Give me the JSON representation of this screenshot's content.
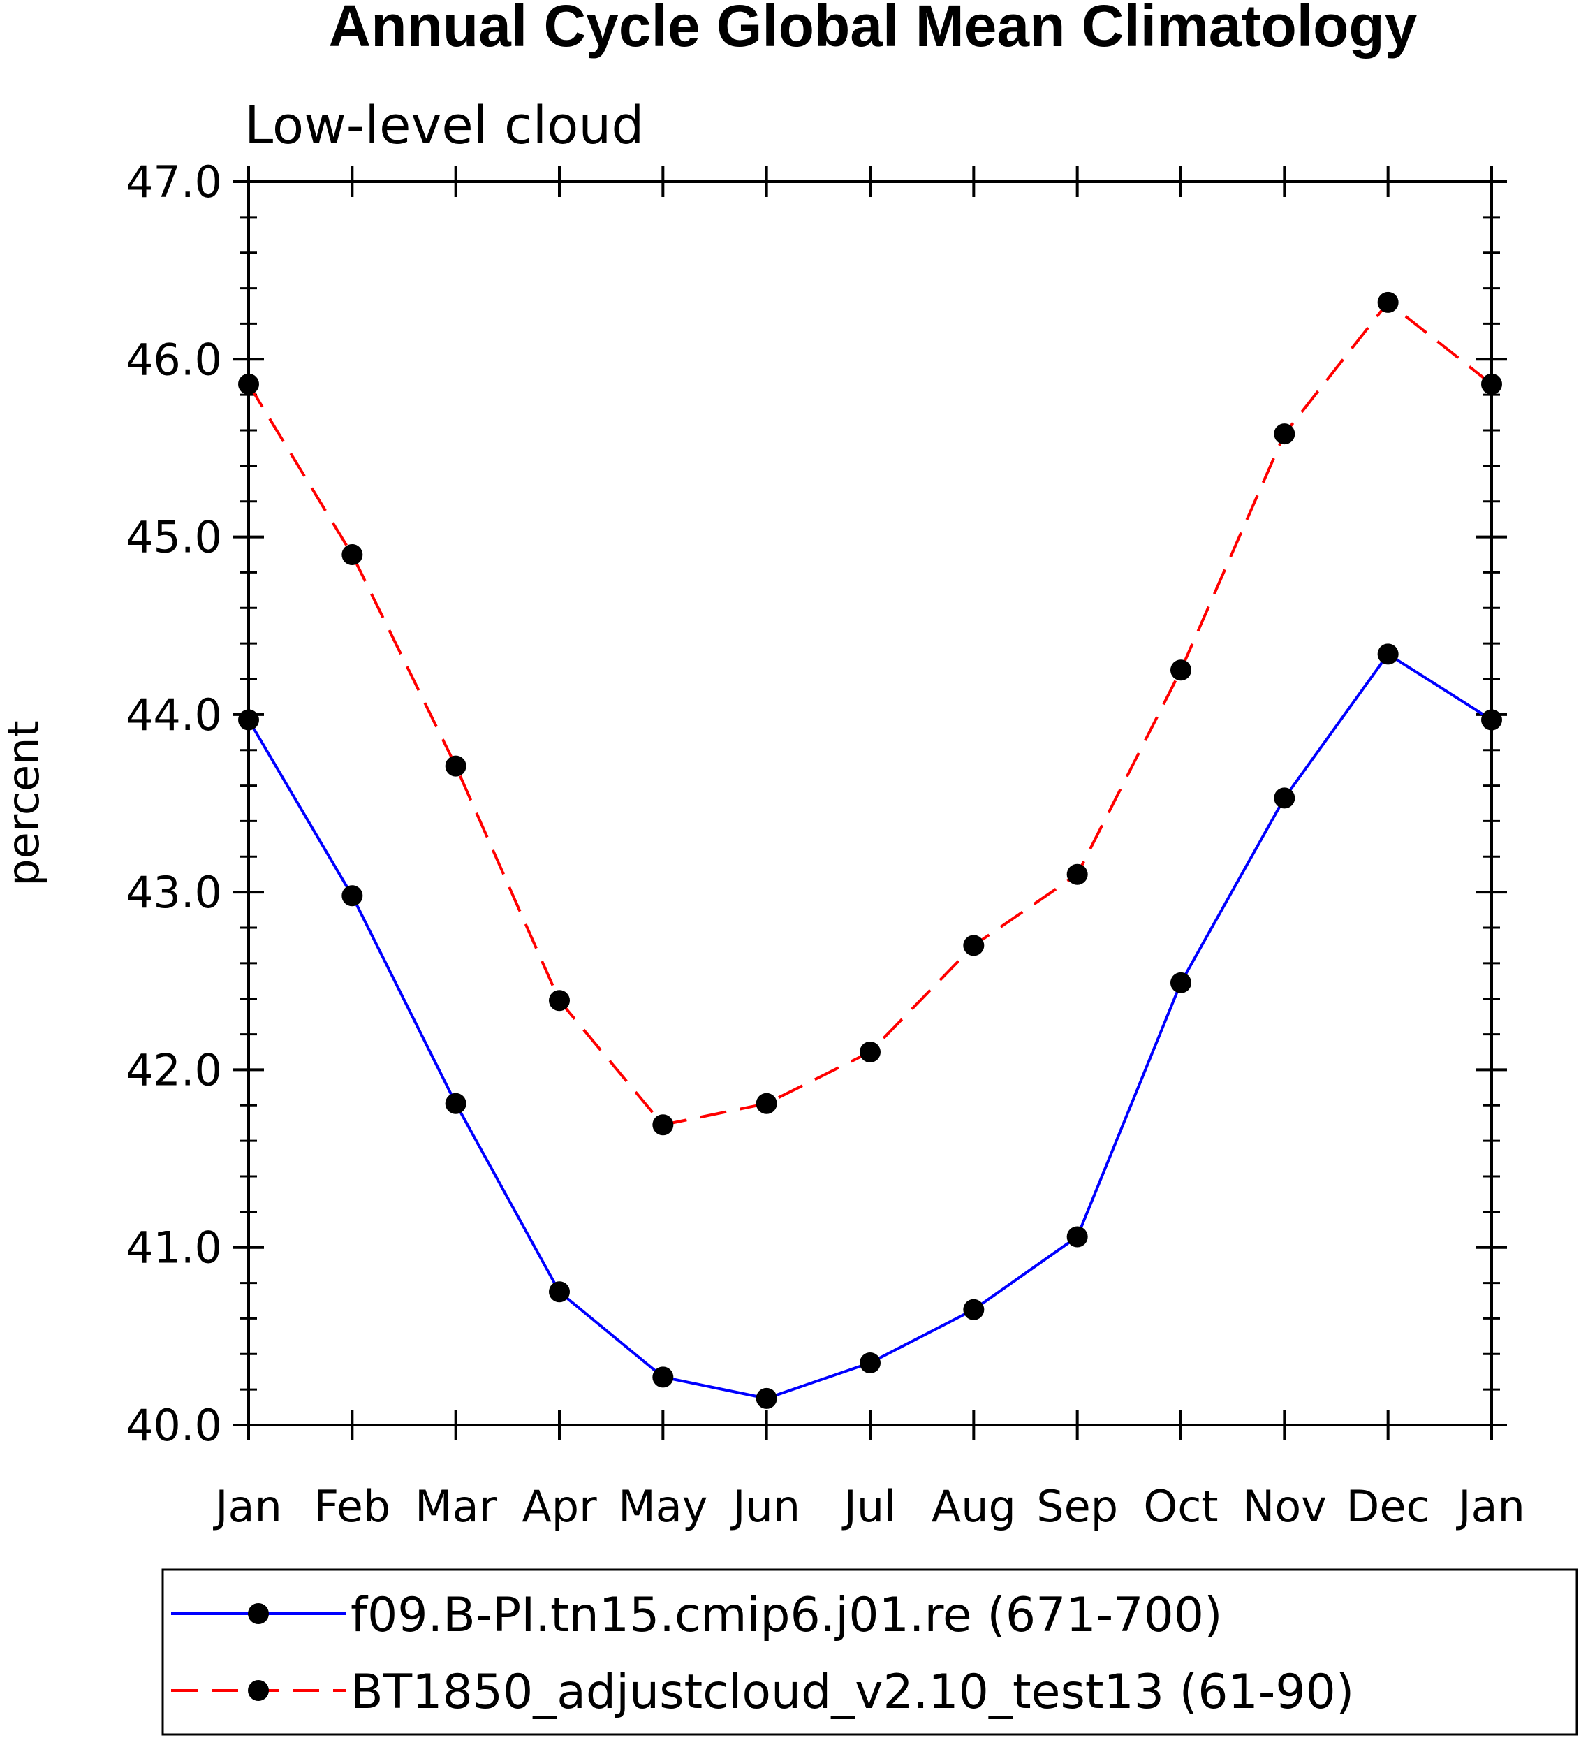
{
  "chart_data": {
    "type": "line",
    "title": "Annual Cycle Global Mean Climatology",
    "subtitle": "Low-level cloud",
    "xlabel": "",
    "ylabel": "percent",
    "categories": [
      "Jan",
      "Feb",
      "Mar",
      "Apr",
      "May",
      "Jun",
      "Jul",
      "Aug",
      "Sep",
      "Oct",
      "Nov",
      "Dec",
      "Jan"
    ],
    "ylim": [
      40.0,
      47.0
    ],
    "yticks": [
      "40.0",
      "41.0",
      "42.0",
      "43.0",
      "44.0",
      "45.0",
      "46.0",
      "47.0"
    ],
    "grid": false,
    "legend_position": "bottom",
    "series": [
      {
        "name": "f09.B-PI.tn15.cmip6.j01.re (671-700)",
        "color": "#0000ff",
        "style": "solid",
        "marker": "filled-circle",
        "values": [
          43.97,
          42.98,
          41.81,
          40.75,
          40.27,
          40.15,
          40.35,
          40.65,
          41.06,
          42.49,
          43.53,
          44.34,
          43.97
        ]
      },
      {
        "name": "BT1850_adjustcloud_v2.10_test13 (61-90)",
        "color": "#ff0000",
        "style": "dashed",
        "marker": "filled-circle",
        "values": [
          45.86,
          44.9,
          43.71,
          42.39,
          41.69,
          41.81,
          42.1,
          42.7,
          43.1,
          44.25,
          45.58,
          46.32,
          45.86
        ]
      }
    ]
  }
}
